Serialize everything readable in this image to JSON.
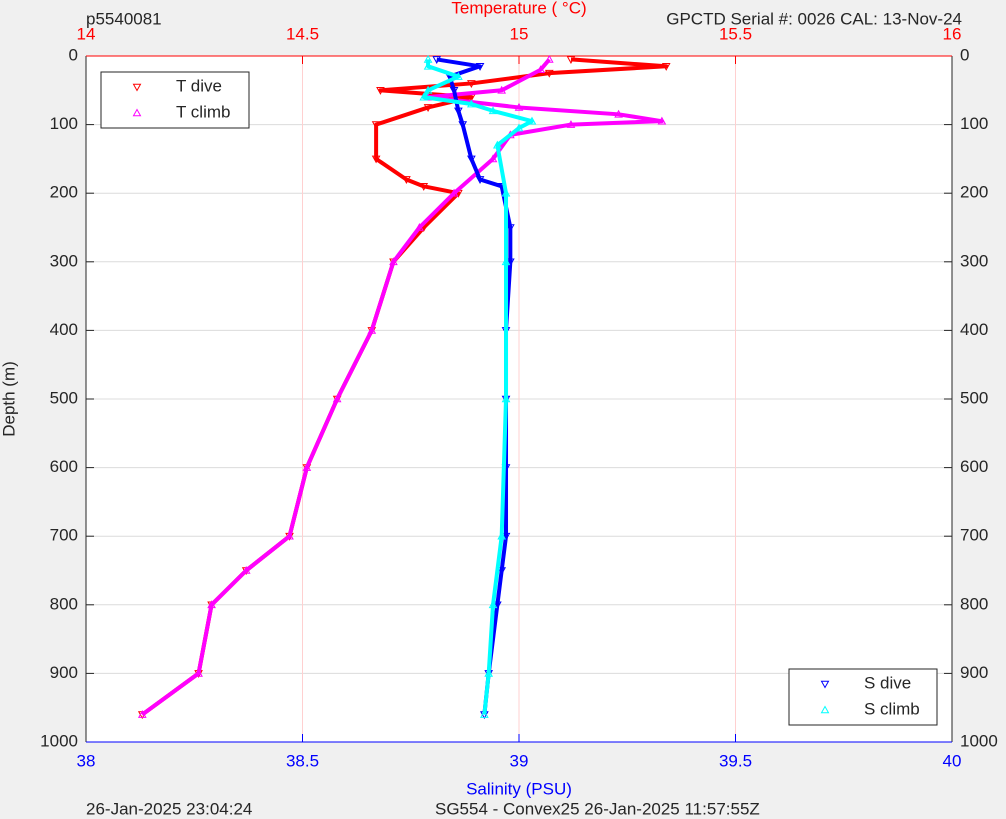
{
  "chart_data": {
    "type": "line",
    "title": "p5540081",
    "subtitle": "GPCTD Serial #: 0026 CAL: 13-Nov-24",
    "x2_label": "Temperature ( °C)",
    "x_label": "Salinity (PSU)",
    "y_label": "Depth (m)",
    "footer_left": "26-Jan-2025 23:04:24",
    "footer_right": "SG554 - Convex25 26-Jan-2025 11:57:55Z",
    "xlim": [
      38,
      40
    ],
    "xticks": [
      38,
      38.5,
      39,
      39.5,
      40
    ],
    "x2lim": [
      14,
      16
    ],
    "x2ticks": [
      14,
      14.5,
      15,
      15.5,
      16
    ],
    "ylim": [
      1000,
      0
    ],
    "yticks": [
      0,
      100,
      200,
      300,
      400,
      500,
      600,
      700,
      800,
      900,
      1000
    ],
    "grid": true,
    "series": [
      {
        "name": "T dive",
        "color": "#ff0000",
        "marker": "down",
        "axis": "x2",
        "legend": "top-left",
        "x": [
          15.12,
          15.34,
          15.07,
          14.89,
          14.68,
          14.89,
          14.79,
          14.67,
          14.67,
          14.74,
          14.78,
          14.86,
          14.78,
          14.71,
          14.66,
          14.58,
          14.51,
          14.47,
          14.37,
          14.29,
          14.26,
          14.13
        ],
        "values": [
          5,
          15,
          25,
          40,
          50,
          60,
          75,
          100,
          150,
          180,
          190,
          200,
          250,
          300,
          400,
          500,
          600,
          700,
          750,
          800,
          900,
          960
        ]
      },
      {
        "name": "T climb",
        "color": "#ff00ff",
        "marker": "up",
        "axis": "x2",
        "legend": "top-left",
        "x": [
          15.07,
          15.05,
          14.96,
          14.79,
          15.0,
          15.23,
          15.33,
          15.12,
          14.98,
          14.94,
          14.85,
          14.77,
          14.71,
          14.66,
          14.58,
          14.51,
          14.47,
          14.37,
          14.29,
          14.26,
          14.13
        ],
        "values": [
          5,
          20,
          50,
          60,
          75,
          85,
          95,
          100,
          115,
          150,
          200,
          250,
          300,
          400,
          500,
          600,
          700,
          750,
          800,
          900,
          960
        ]
      },
      {
        "name": "S dive",
        "color": "#0000ff",
        "marker": "down",
        "legend": "bottom-right",
        "x": [
          38.81,
          38.91,
          38.84,
          38.85,
          38.86,
          38.87,
          38.89,
          38.91,
          38.96,
          38.98,
          38.98,
          38.97,
          38.97,
          38.97,
          38.97,
          38.96,
          38.95,
          38.93,
          38.92
        ],
        "values": [
          5,
          15,
          30,
          50,
          80,
          100,
          150,
          180,
          190,
          250,
          300,
          400,
          500,
          600,
          700,
          750,
          800,
          900,
          960
        ]
      },
      {
        "name": "S climb",
        "color": "#00ffff",
        "marker": "up",
        "legend": "bottom-right",
        "x": [
          38.79,
          38.79,
          38.86,
          38.79,
          38.78,
          38.89,
          38.94,
          39.03,
          39.0,
          38.95,
          38.97,
          38.97,
          38.97,
          38.96,
          38.94,
          38.93,
          38.92
        ],
        "values": [
          5,
          15,
          30,
          50,
          60,
          70,
          80,
          95,
          105,
          130,
          200,
          300,
          500,
          700,
          800,
          900,
          960
        ]
      }
    ]
  }
}
